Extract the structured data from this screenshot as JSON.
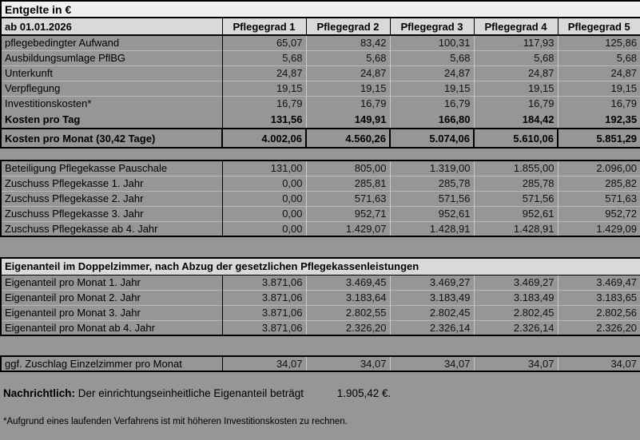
{
  "title": "Entgelte in €",
  "table": {
    "effective_date": "ab 01.01.2026",
    "columns": [
      "Pflegegrad 1",
      "Pflegegrad 2",
      "Pflegegrad 3",
      "Pflegegrad 4",
      "Pflegegrad 5"
    ],
    "cost_rows": [
      {
        "label": "pflegebedingter Aufwand",
        "values": [
          "65,07",
          "83,42",
          "100,31",
          "117,93",
          "125,86"
        ]
      },
      {
        "label": "Ausbildungsumlage PflBG",
        "values": [
          "5,68",
          "5,68",
          "5,68",
          "5,68",
          "5,68"
        ]
      },
      {
        "label": "Unterkunft",
        "values": [
          "24,87",
          "24,87",
          "24,87",
          "24,87",
          "24,87"
        ]
      },
      {
        "label": "Verpflegung",
        "values": [
          "19,15",
          "19,15",
          "19,15",
          "19,15",
          "19,15"
        ]
      },
      {
        "label": "Investitionskosten*",
        "values": [
          "16,79",
          "16,79",
          "16,79",
          "16,79",
          "16,79"
        ]
      }
    ],
    "total_day": {
      "label": "Kosten pro Tag",
      "values": [
        "131,56",
        "149,91",
        "166,80",
        "184,42",
        "192,35"
      ]
    },
    "total_month": {
      "label": "Kosten pro Monat (30,42 Tage)",
      "values": [
        "4.002,06",
        "4.560,26",
        "5.074,06",
        "5.610,06",
        "5.851,29"
      ]
    }
  },
  "subsidies": {
    "rows": [
      {
        "label": "Beteiligung Pflegekasse Pauschale",
        "values": [
          "131,00",
          "805,00",
          "1.319,00",
          "1.855,00",
          "2.096,00"
        ]
      },
      {
        "label": "Zuschuss Pflegekasse 1. Jahr",
        "values": [
          "0,00",
          "285,81",
          "285,78",
          "285,78",
          "285,82"
        ]
      },
      {
        "label": "Zuschuss Pflegekasse 2. Jahr",
        "values": [
          "0,00",
          "571,63",
          "571,56",
          "571,56",
          "571,63"
        ]
      },
      {
        "label": "Zuschuss Pflegekasse 3. Jahr",
        "values": [
          "0,00",
          "952,71",
          "952,61",
          "952,61",
          "952,72"
        ]
      },
      {
        "label": "Zuschuss Pflegekasse ab 4. Jahr",
        "values": [
          "0,00",
          "1.429,07",
          "1.428,91",
          "1.428,91",
          "1.429,09"
        ]
      }
    ]
  },
  "own_share": {
    "header": "Eigenanteil im Doppelzimmer, nach Abzug der gesetzlichen Pflegekassenleistungen",
    "rows": [
      {
        "label": "Eigenanteil pro Monat 1. Jahr",
        "values": [
          "3.871,06",
          "3.469,45",
          "3.469,27",
          "3.469,27",
          "3.469,47"
        ]
      },
      {
        "label": "Eigenanteil pro Monat 2. Jahr",
        "values": [
          "3.871,06",
          "3.183,64",
          "3.183,49",
          "3.183,49",
          "3.183,65"
        ]
      },
      {
        "label": "Eigenanteil pro Monat 3. Jahr",
        "values": [
          "3.871,06",
          "2.802,55",
          "2.802,45",
          "2.802,45",
          "2.802,56"
        ]
      },
      {
        "label": "Eigenanteil pro Monat ab 4. Jahr",
        "values": [
          "3.871,06",
          "2.326,20",
          "2.326,14",
          "2.326,14",
          "2.326,20"
        ]
      }
    ]
  },
  "single_room": {
    "label": "ggf. Zuschlag Einzelzimmer pro Monat",
    "values": [
      "34,07",
      "34,07",
      "34,07",
      "34,07",
      "34,07"
    ]
  },
  "note": {
    "label": "Nachrichtlich:",
    "text": "Der einrichtungseinheitliche Eigenanteil beträgt",
    "value": "1.905,42 €."
  },
  "footnote": "*Aufgrund eines laufenden Verfahrens ist mit höheren Investitionskosten zu rechnen.",
  "colors": {
    "page_background": "#969696",
    "header_fill": "#d9d9d9",
    "title_fill": "#efefef",
    "border": "#000000"
  }
}
